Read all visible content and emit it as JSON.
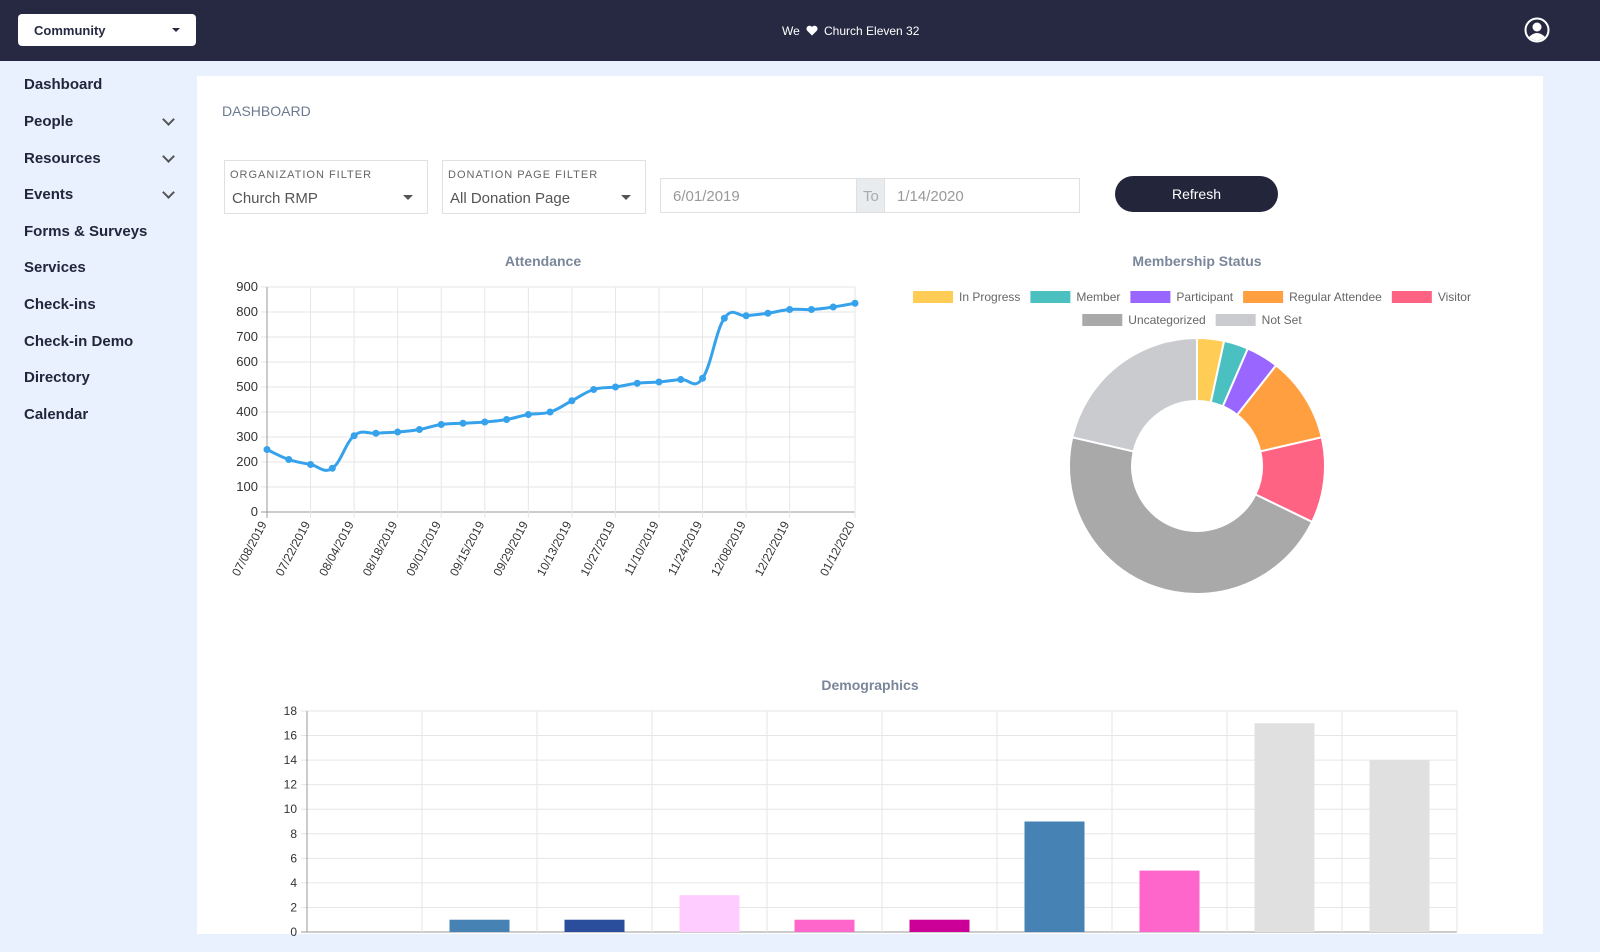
{
  "header": {
    "app_menu": "Community",
    "brand_prefix": "We",
    "brand_name": "Church Eleven 32"
  },
  "sidebar": {
    "items": [
      "Dashboard",
      "People",
      "Resources",
      "Events",
      "Forms & Surveys",
      "Services",
      "Check-ins",
      "Check-in Demo",
      "Directory",
      "Calendar"
    ]
  },
  "dashboard": {
    "title": "DASHBOARD",
    "filters": {
      "organization": {
        "label": "ORGANIZATION FILTER",
        "value": "Church RMP"
      },
      "donation_page": {
        "label": "DONATION PAGE FILTER",
        "value": "All Donation Page"
      },
      "date_from": "6/01/2019",
      "date_separator": "To",
      "date_to": "1/14/2020"
    },
    "refresh_button": "Refresh"
  },
  "chart_data": [
    {
      "type": "line",
      "title": "Attendance",
      "categories": [
        "07/08/2019",
        null,
        "07/22/2019",
        null,
        "08/04/2019",
        null,
        "08/18/2019",
        null,
        "09/01/2019",
        null,
        "09/15/2019",
        null,
        "09/29/2019",
        null,
        "10/13/2019",
        null,
        "10/27/2019",
        null,
        "11/10/2019",
        null,
        "11/24/2019",
        null,
        "12/08/2019",
        null,
        "12/22/2019",
        null,
        null,
        "01/12/2020"
      ],
      "values": [
        250,
        210,
        190,
        175,
        305,
        315,
        320,
        330,
        350,
        355,
        360,
        370,
        390,
        400,
        445,
        490,
        500,
        515,
        520,
        530,
        535,
        775,
        785,
        795,
        810,
        810,
        820,
        835
      ],
      "color": "#36a2eb",
      "ylim": [
        0,
        900
      ],
      "yticks": [
        0,
        100,
        200,
        300,
        400,
        500,
        600,
        700,
        800,
        900
      ],
      "grid": true
    },
    {
      "type": "doughnut",
      "title": "Membership Status",
      "categories": [
        "In Progress",
        "Member",
        "Participant",
        "Regular Attendee",
        "Visitor",
        "Uncategorized",
        "Not Set"
      ],
      "values": [
        3.4,
        3.1,
        4.1,
        10.8,
        10.8,
        46.4,
        21.4
      ],
      "colors": [
        "#ffcd56",
        "#4bc0c0",
        "#9966ff",
        "#ff9f40",
        "#ff6384",
        "#a9a9a9",
        "#c9cbcf"
      ],
      "legend": "top"
    },
    {
      "type": "bar",
      "title": "Demographics",
      "categories": [
        null,
        null,
        null,
        null,
        null,
        null,
        null,
        null,
        null,
        null
      ],
      "values": [
        0,
        1,
        1,
        3,
        1,
        1,
        9,
        5,
        17,
        14
      ],
      "colors": [
        "#4682b4",
        "#4682b4",
        "#2a4d9c",
        "#ffccff",
        "#ff66cc",
        "#cc0099",
        "#4682b4",
        "#ff66cc",
        "#e0e0e0",
        "#e0e0e0"
      ],
      "ylim": [
        0,
        18
      ],
      "yticks": [
        0,
        2,
        4,
        6,
        8,
        10,
        12,
        14,
        16,
        18
      ],
      "grid": true
    }
  ]
}
